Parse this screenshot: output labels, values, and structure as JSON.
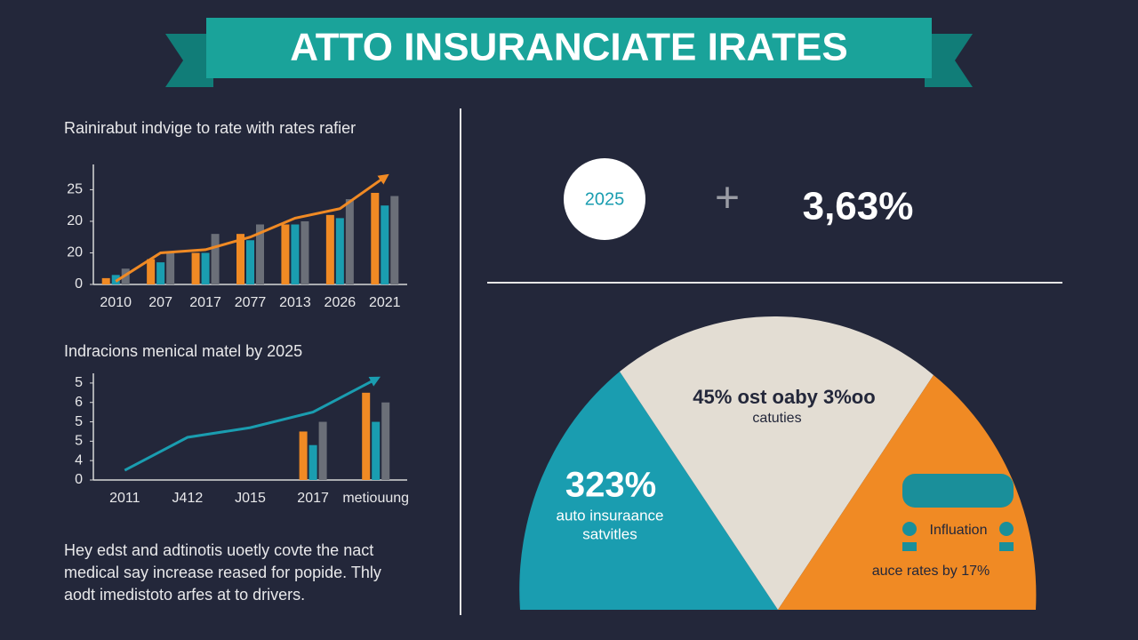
{
  "header": {
    "title": "ATTO INSURANCIATE IRATES"
  },
  "chart_data": [
    {
      "type": "bar",
      "title": "Rainirabut indvige to rate with rates rafier",
      "categories": [
        "2010",
        "207",
        "2017",
        "2077",
        "2013",
        "2026",
        "2021"
      ],
      "ylim": [
        0,
        38
      ],
      "yticks": [
        0,
        {
          "value": 10,
          "label": "20"
        },
        20,
        {
          "value": 30,
          "label": "25"
        }
      ],
      "series": [
        {
          "color": "#f08a24",
          "values": [
            2,
            8,
            10,
            16,
            19,
            22,
            29
          ]
        },
        {
          "color": "#1a9db0",
          "values": [
            3,
            7,
            10,
            14,
            19,
            21,
            25
          ]
        },
        {
          "color": "#6b6f78",
          "values": [
            5,
            10,
            16,
            19,
            20,
            27,
            28
          ]
        },
        {
          "type": "line",
          "color": "#f08a24",
          "values": [
            1,
            10,
            11,
            15,
            21,
            24,
            34
          ]
        }
      ]
    },
    {
      "type": "bar",
      "title": "Indracions menical matel by 2025",
      "categories": [
        "2011",
        "J412",
        "J015",
        "2017",
        "metiouung"
      ],
      "ylim": [
        0,
        5.5
      ],
      "yticks": [
        0,
        {
          "value": 1,
          "label": "4"
        },
        {
          "value": 2,
          "label": "5"
        },
        {
          "value": 3,
          "label": "5"
        },
        {
          "value": 4,
          "label": "6"
        },
        5
      ],
      "series": [
        {
          "color": "#f08a24",
          "values": [
            null,
            null,
            null,
            2.5,
            4.5
          ]
        },
        {
          "color": "#1a9db0",
          "values": [
            null,
            null,
            null,
            1.8,
            3
          ]
        },
        {
          "color": "#6b6f78",
          "values": [
            null,
            null,
            null,
            3,
            4
          ]
        },
        {
          "type": "line",
          "color": "#1a9db0",
          "values": [
            0.5,
            2.2,
            2.7,
            3.5,
            5.2
          ]
        }
      ]
    }
  ],
  "stat": {
    "year": "2025",
    "operator": "+",
    "value": "3,63%"
  },
  "gauge": {
    "left": {
      "figure": "323%",
      "label": [
        "auto insuraance",
        "satvitles"
      ]
    },
    "middle": {
      "figure": "45% ost oaby 3%oo",
      "label": [
        "catuties"
      ]
    },
    "right": {
      "label": "Influation",
      "caption": "auce rates by 17%"
    }
  },
  "paragraph": [
    "Hey edst and adtinotis uoetly covte the nact",
    "medical say increase reased for popide. Thly",
    "aodt imedistoto arfes at to drivers."
  ]
}
